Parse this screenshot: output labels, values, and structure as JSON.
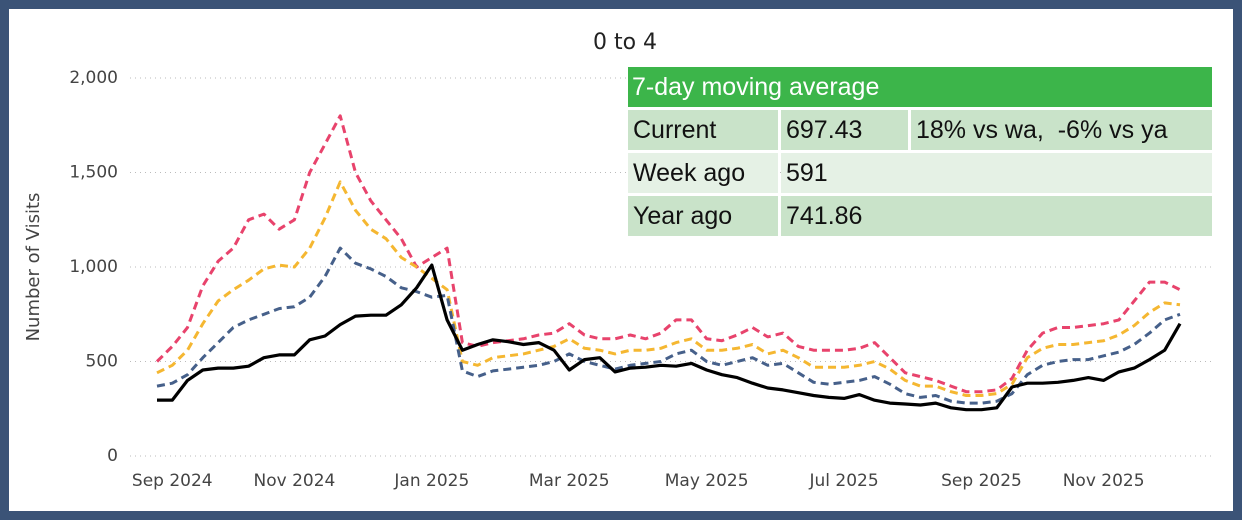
{
  "chart_data": {
    "type": "line",
    "title": "0 to 4",
    "y_label": "Number of Visits",
    "categories": [
      null,
      "Sep 2024",
      null,
      null,
      null,
      null,
      null,
      null,
      null,
      "Nov 2024",
      null,
      null,
      null,
      null,
      null,
      null,
      null,
      null,
      "Jan 2025",
      null,
      null,
      null,
      null,
      null,
      null,
      null,
      null,
      "Mar 2025",
      null,
      null,
      null,
      null,
      null,
      null,
      null,
      null,
      "May 2025",
      null,
      null,
      null,
      null,
      null,
      null,
      null,
      null,
      "Jul 2025",
      null,
      null,
      null,
      null,
      null,
      null,
      null,
      null,
      "Sep 2025",
      null,
      null,
      null,
      null,
      null,
      null,
      null,
      "Nov 2025",
      null,
      null,
      null,
      null,
      null
    ],
    "series": [
      {
        "color": "#e8436c",
        "dashed": true,
        "values": [
          500,
          580,
          680,
          900,
          1030,
          1100,
          1250,
          1280,
          1200,
          1250,
          1500,
          1650,
          1800,
          1500,
          1350,
          1250,
          1150,
          1000,
          1050,
          1100,
          600,
          580,
          600,
          610,
          620,
          640,
          650,
          700,
          640,
          620,
          620,
          640,
          620,
          650,
          720,
          720,
          620,
          610,
          640,
          680,
          630,
          650,
          580,
          560,
          560,
          560,
          570,
          600,
          520,
          440,
          420,
          400,
          370,
          340,
          340,
          350,
          410,
          560,
          650,
          680,
          680,
          690,
          700,
          720,
          820,
          920,
          920,
          880
        ]
      },
      {
        "color": "#f5b731",
        "dashed": true,
        "values": [
          440,
          480,
          560,
          700,
          820,
          880,
          930,
          990,
          1010,
          1000,
          1100,
          1260,
          1450,
          1300,
          1200,
          1150,
          1050,
          1000,
          940,
          880,
          500,
          480,
          520,
          530,
          540,
          560,
          580,
          620,
          570,
          560,
          540,
          560,
          560,
          570,
          600,
          620,
          560,
          560,
          570,
          590,
          540,
          560,
          520,
          470,
          470,
          470,
          480,
          500,
          460,
          400,
          370,
          370,
          340,
          320,
          320,
          330,
          380,
          520,
          570,
          590,
          590,
          600,
          610,
          640,
          690,
          760,
          810,
          800
        ]
      },
      {
        "color": "#46608a",
        "dashed": true,
        "values": [
          370,
          385,
          430,
          520,
          600,
          680,
          720,
          750,
          780,
          790,
          840,
          950,
          1100,
          1020,
          990,
          950,
          890,
          870,
          840,
          850,
          450,
          420,
          450,
          460,
          470,
          480,
          500,
          540,
          500,
          480,
          460,
          480,
          490,
          500,
          540,
          560,
          500,
          480,
          500,
          520,
          480,
          490,
          440,
          390,
          380,
          390,
          400,
          420,
          380,
          330,
          310,
          320,
          290,
          280,
          280,
          290,
          330,
          430,
          480,
          500,
          510,
          510,
          530,
          550,
          590,
          650,
          720,
          750
        ]
      },
      {
        "color": "#000000",
        "dashed": false,
        "values": [
          296,
          296,
          400,
          455,
          465,
          465,
          475,
          520,
          535,
          535,
          615,
          635,
          695,
          740,
          745,
          745,
          800,
          890,
          1010,
          720,
          560,
          590,
          615,
          605,
          590,
          600,
          560,
          455,
          510,
          520,
          445,
          465,
          470,
          480,
          475,
          490,
          455,
          430,
          415,
          385,
          360,
          350,
          335,
          320,
          310,
          305,
          325,
          295,
          280,
          275,
          270,
          280,
          255,
          245,
          245,
          255,
          365,
          385,
          385,
          390,
          400,
          415,
          400,
          445,
          465,
          510,
          560,
          700
        ]
      }
    ],
    "ylim": [
      0,
      2000
    ],
    "yticks": [
      0,
      500,
      {
        "value": 1000,
        "label": "1,000"
      },
      {
        "value": 1500,
        "label": "1,500"
      },
      {
        "value": 2000,
        "label": "2,000"
      }
    ],
    "grid": true
  },
  "table": {
    "title": "7-day moving average",
    "rows": [
      [
        "Current",
        "697.43",
        "18% vs wa,  -6% vs ya"
      ],
      [
        "Week ago",
        "591"
      ],
      [
        "Year ago",
        "741.86"
      ]
    ]
  }
}
